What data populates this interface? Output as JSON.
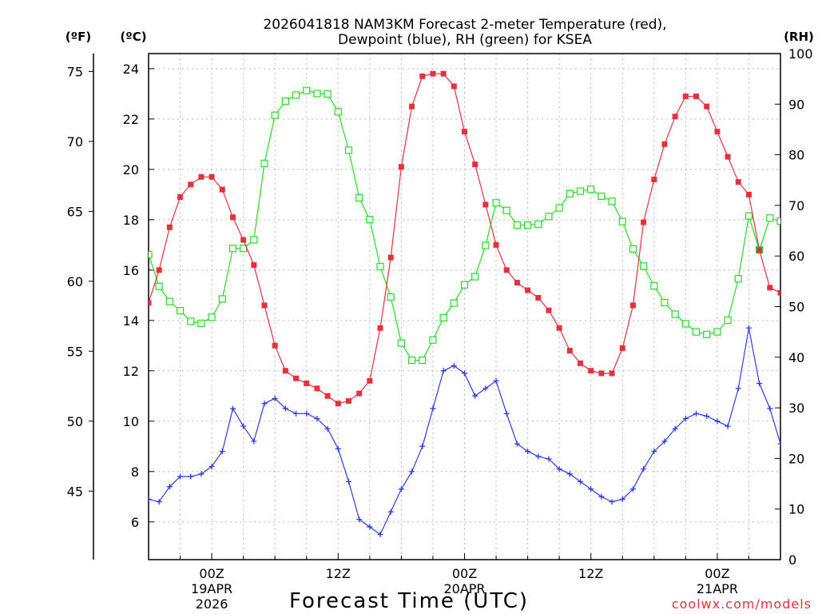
{
  "chart_data": {
    "type": "line",
    "title_line1": "2026041818 NAM3KM Forecast 2-meter Temperature (red),",
    "title_line2": "Dewpoint (blue), RH (green) for KSEA",
    "xlabel": "Forecast Time (UTC)",
    "credit": "coolwx.com/models",
    "units": {
      "fahrenheit": "(ºF)",
      "celsius": "(ºC)",
      "rh": "(RH)"
    },
    "x_start_hour": 18,
    "x_end_hour": 78,
    "ylim_c": [
      4.5,
      24.6
    ],
    "ylim_rh": [
      0,
      100
    ],
    "c_ticks": [
      6,
      8,
      10,
      12,
      14,
      16,
      18,
      20,
      22,
      24
    ],
    "f_ticks": [
      45,
      50,
      55,
      60,
      65,
      70,
      75
    ],
    "rh_ticks": [
      0,
      10,
      20,
      30,
      40,
      50,
      60,
      70,
      80,
      90,
      100
    ],
    "x_ticks": [
      {
        "hour": 24,
        "label1": "00Z",
        "label2": "19APR",
        "label3": "2026"
      },
      {
        "hour": 36,
        "label1": "12Z",
        "label2": "",
        "label3": ""
      },
      {
        "hour": 48,
        "label1": "00Z",
        "label2": "20APR",
        "label3": ""
      },
      {
        "hour": 60,
        "label1": "12Z",
        "label2": "",
        "label3": ""
      },
      {
        "hour": 72,
        "label1": "00Z",
        "label2": "21APR",
        "label3": ""
      }
    ],
    "hours": [
      18,
      19,
      20,
      21,
      22,
      23,
      24,
      25,
      26,
      27,
      28,
      29,
      30,
      31,
      32,
      33,
      34,
      35,
      36,
      37,
      38,
      39,
      40,
      41,
      42,
      43,
      44,
      45,
      46,
      47,
      48,
      49,
      50,
      51,
      52,
      53,
      54,
      55,
      56,
      57,
      58,
      59,
      60,
      61,
      62,
      63,
      64,
      65,
      66,
      67,
      68,
      69,
      70,
      71,
      72,
      73,
      74,
      75,
      76,
      77,
      78
    ],
    "series": [
      {
        "name": "2-meter Temperature",
        "unit": "C",
        "color": "#e8303a",
        "marker": "filled-square",
        "values": [
          14.7,
          16.0,
          17.7,
          18.9,
          19.4,
          19.7,
          19.7,
          19.2,
          18.1,
          17.2,
          16.2,
          14.6,
          13.0,
          12.0,
          11.7,
          11.5,
          11.3,
          11.0,
          10.7,
          10.8,
          11.1,
          11.6,
          13.7,
          16.5,
          20.1,
          22.5,
          23.7,
          23.8,
          23.8,
          23.3,
          21.5,
          20.2,
          18.6,
          17.0,
          16.0,
          15.5,
          15.2,
          14.9,
          14.4,
          13.7,
          12.8,
          12.3,
          12.0,
          11.9,
          11.9,
          12.9,
          14.6,
          17.9,
          19.6,
          21.0,
          22.1,
          22.9,
          22.9,
          22.5,
          21.5,
          20.5,
          19.5,
          19.0,
          16.8,
          15.3,
          15.1
        ]
      },
      {
        "name": "Dewpoint",
        "unit": "C",
        "color": "#2b3ee8",
        "marker": "plus",
        "values": [
          6.9,
          6.8,
          7.4,
          7.8,
          7.8,
          7.9,
          8.2,
          8.8,
          10.5,
          9.8,
          9.2,
          10.7,
          10.9,
          10.5,
          10.3,
          10.3,
          10.1,
          9.7,
          8.9,
          7.6,
          6.1,
          5.8,
          5.5,
          6.4,
          7.3,
          8.0,
          9.0,
          10.5,
          12.0,
          12.2,
          11.9,
          11.0,
          11.3,
          11.6,
          10.3,
          9.1,
          8.8,
          8.6,
          8.5,
          8.1,
          7.9,
          7.6,
          7.3,
          7.0,
          6.8,
          6.9,
          7.3,
          8.1,
          8.8,
          9.2,
          9.7,
          10.1,
          10.3,
          10.2,
          10.0,
          9.8,
          11.3,
          13.7,
          11.5,
          10.5,
          9.1
        ]
      },
      {
        "name": "Relative Humidity",
        "unit": "RH",
        "color": "#22dd22",
        "marker": "open-square",
        "values": [
          60.3,
          54.0,
          51.0,
          49.2,
          47.1,
          46.7,
          47.9,
          51.5,
          61.5,
          61.5,
          63.2,
          78.3,
          87.8,
          90.6,
          91.8,
          92.7,
          92.1,
          92.0,
          88.5,
          80.9,
          71.5,
          67.2,
          57.9,
          51.9,
          42.8,
          39.4,
          39.4,
          43.4,
          47.8,
          50.7,
          54.3,
          55.9,
          62.1,
          70.5,
          69.0,
          66.1,
          66.1,
          66.3,
          67.8,
          69.5,
          72.3,
          72.8,
          73.2,
          71.8,
          70.8,
          66.8,
          61.4,
          58.0,
          54.1,
          50.8,
          48.5,
          46.6,
          45.0,
          44.5,
          45.0,
          47.3,
          55.5,
          67.9,
          61.2,
          67.5,
          66.9
        ]
      }
    ]
  }
}
